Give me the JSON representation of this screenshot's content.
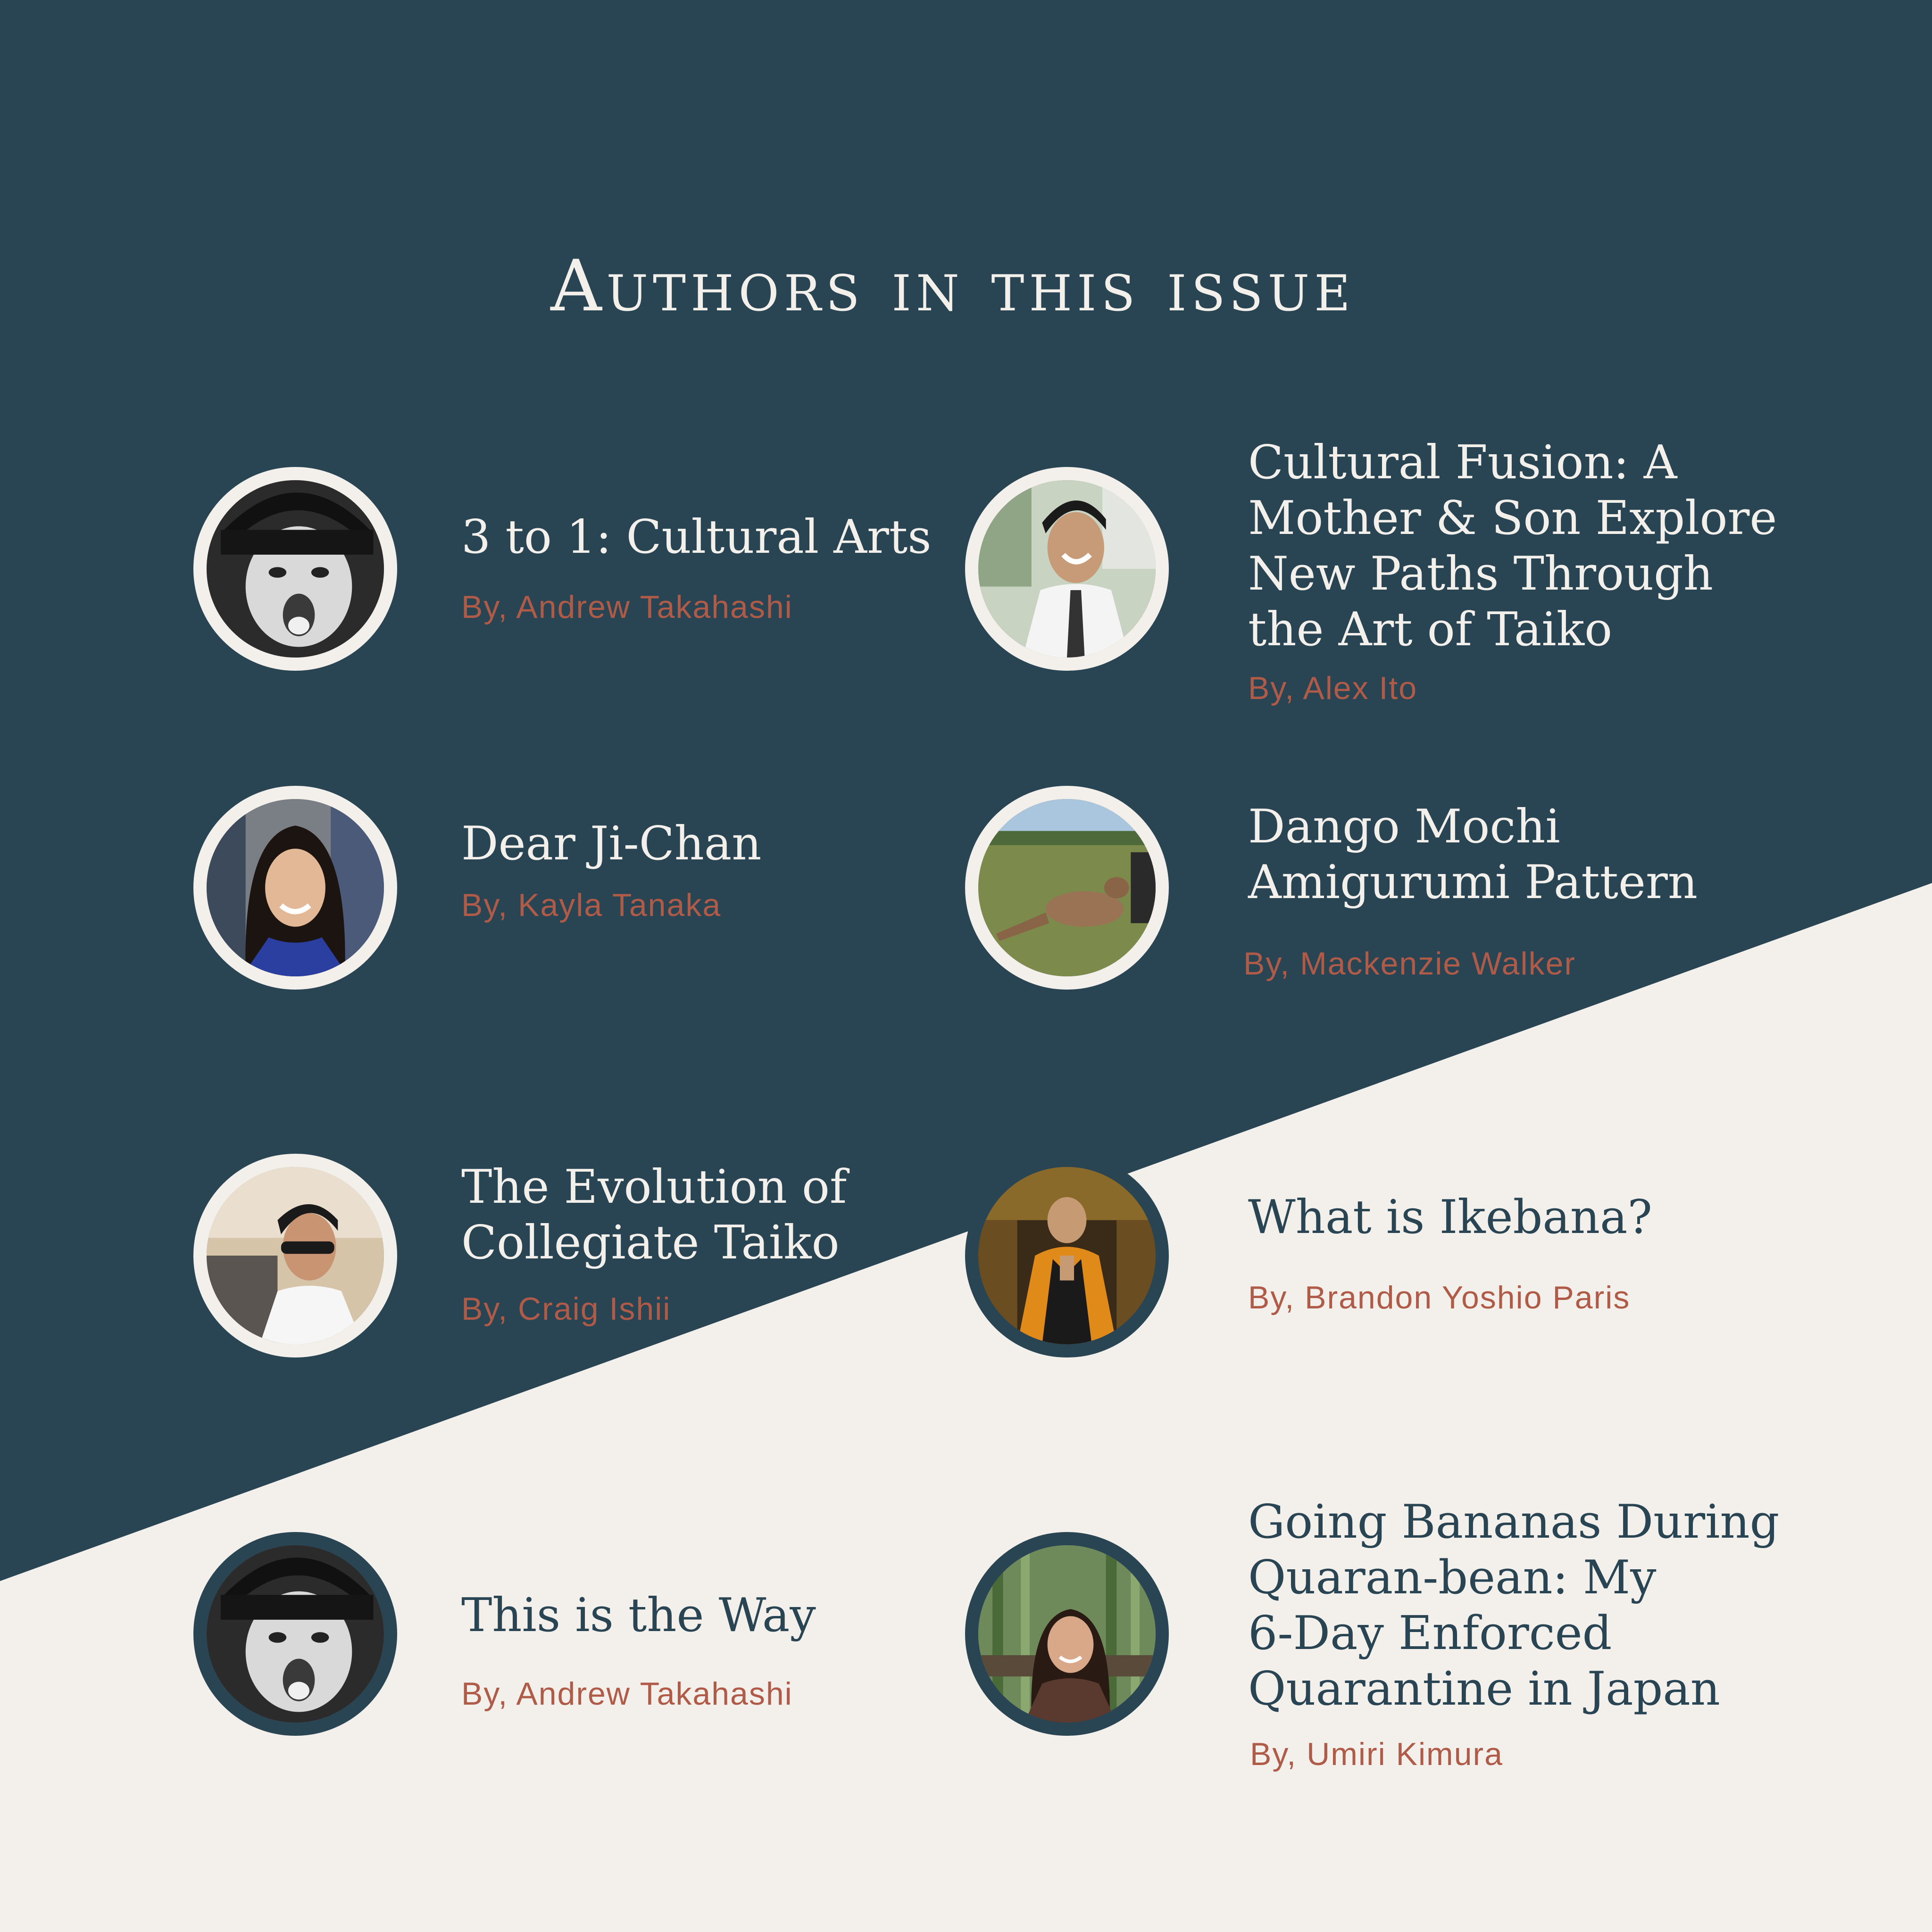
{
  "page": {
    "title": "Authors in this issue"
  },
  "colors": {
    "navy": "#294453",
    "cream": "#f3efeb",
    "byline": "#b05a48"
  },
  "articles": [
    {
      "title_lines": [
        "3 to 1: Cultural Arts"
      ],
      "byline": "By, Andrew Takahashi",
      "photo": "grayscale-portrait-cap-photo"
    },
    {
      "title_lines": [
        "Cultural Fusion: A",
        "Mother & Son Explore",
        "New Paths Through",
        "the Art of Taiko"
      ],
      "byline": "By, Alex Ito",
      "photo": "smiling-man-tie-photo"
    },
    {
      "title_lines": [
        "Dear Ji-Chan"
      ],
      "byline": "By, Kayla Tanaka",
      "photo": "smiling-woman-photo"
    },
    {
      "title_lines": [
        "Dango Mochi",
        "Amigurumi Pattern"
      ],
      "byline": "By, Mackenzie Walker",
      "photo": "kangaroo-field-photo"
    },
    {
      "title_lines": [
        "The Evolution of",
        "Collegiate Taiko"
      ],
      "byline": "By, Craig Ishii",
      "photo": "man-sunglasses-photo"
    },
    {
      "title_lines": [
        "What is Ikebana?"
      ],
      "byline": "By, Brandon Yoshio Paris",
      "photo": "monk-orange-robe-photo"
    },
    {
      "title_lines": [
        "This is the Way"
      ],
      "byline": "By, Andrew Takahashi",
      "photo": "grayscale-portrait-cap-photo"
    },
    {
      "title_lines": [
        "Going Bananas During",
        "Quaran-bean: My",
        "6-Day Enforced",
        "Quarantine in Japan"
      ],
      "byline": "By, Umiri Kimura",
      "photo": "woman-bamboo-forest-photo"
    }
  ]
}
